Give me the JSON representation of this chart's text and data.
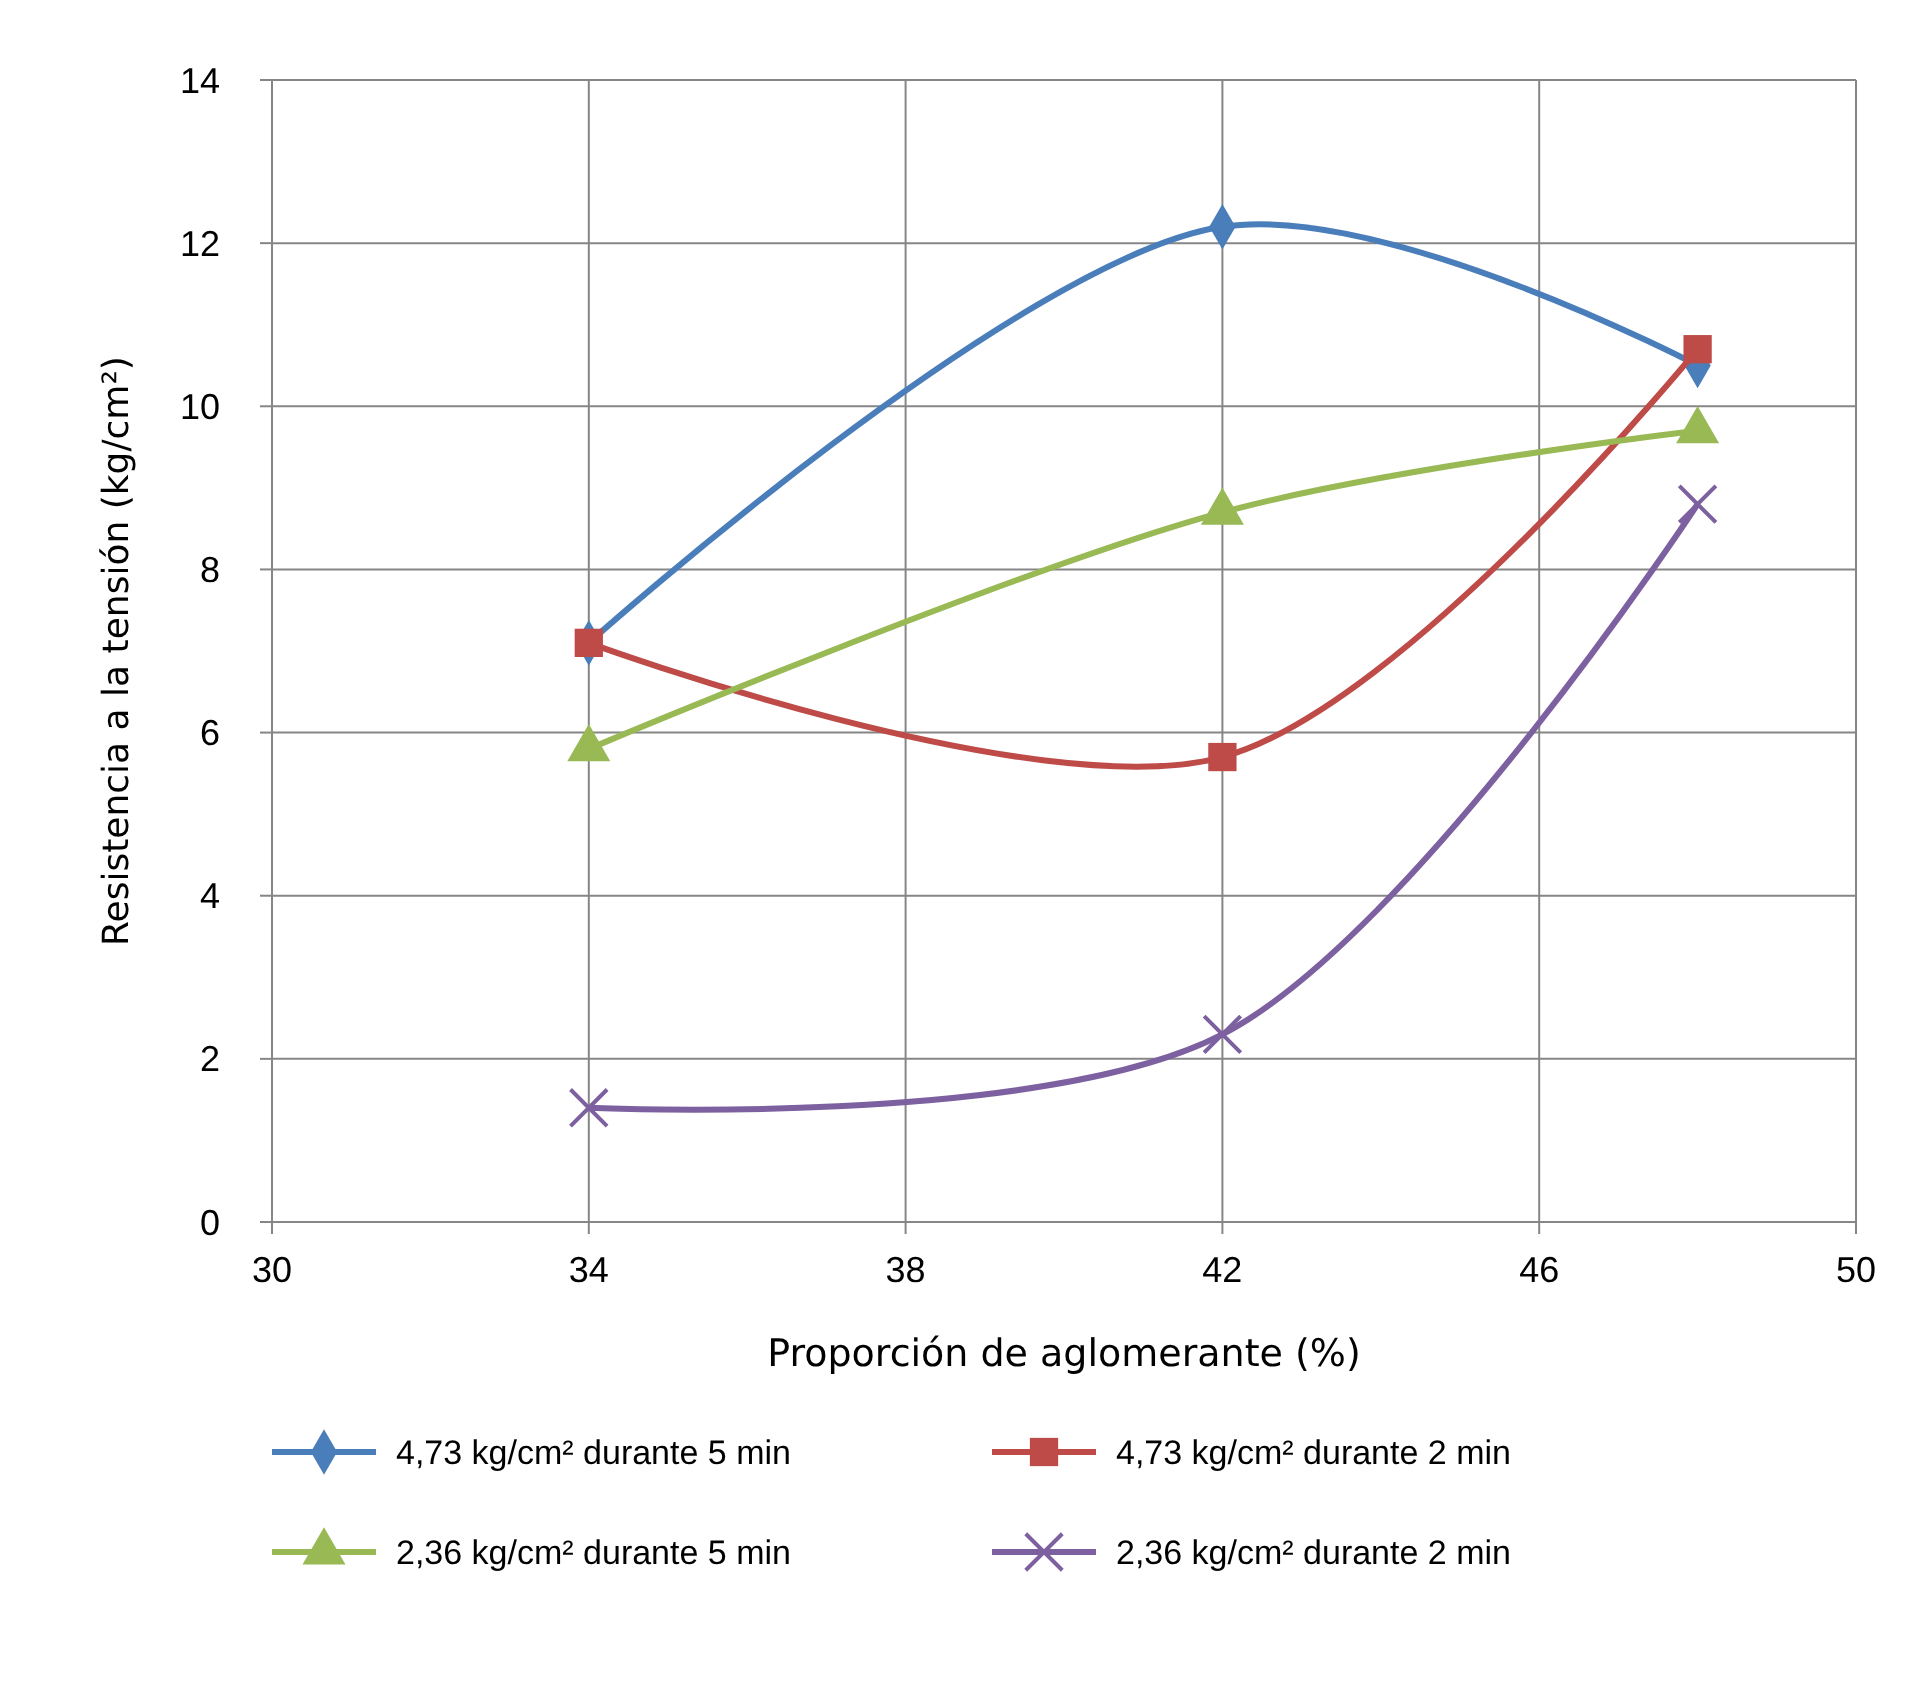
{
  "chart_data": {
    "type": "line",
    "xlabel": "Proporción de aglomerante (%)",
    "ylabel": "Resistencia a la tensión  (kg/cm²)",
    "x": [
      34,
      42,
      48
    ],
    "xlim": [
      30,
      50
    ],
    "xticks": [
      30,
      34,
      38,
      42,
      46,
      50
    ],
    "ylim": [
      0,
      14
    ],
    "yticks": [
      0,
      2,
      4,
      6,
      8,
      10,
      12,
      14
    ],
    "grid": true,
    "legend": "bottom",
    "line_style": "solid",
    "series": [
      {
        "name": "4,73 kg/cm² durante 5 min",
        "color": "#4a7ebb",
        "marker": "diamond",
        "values": [
          7.1,
          12.2,
          10.5
        ]
      },
      {
        "name": "4,73 kg/cm² durante 2 min",
        "color": "#be4b48",
        "marker": "square",
        "values": [
          7.1,
          5.7,
          10.7
        ]
      },
      {
        "name": "2,36 kg/cm² durante 5 min",
        "color": "#98b954",
        "marker": "triangle",
        "values": [
          5.8,
          8.7,
          9.7
        ]
      },
      {
        "name": "2,36 kg/cm² durante 2 min",
        "color": "#7d60a0",
        "marker": "cross",
        "values": [
          1.4,
          2.3,
          8.8
        ]
      }
    ]
  }
}
